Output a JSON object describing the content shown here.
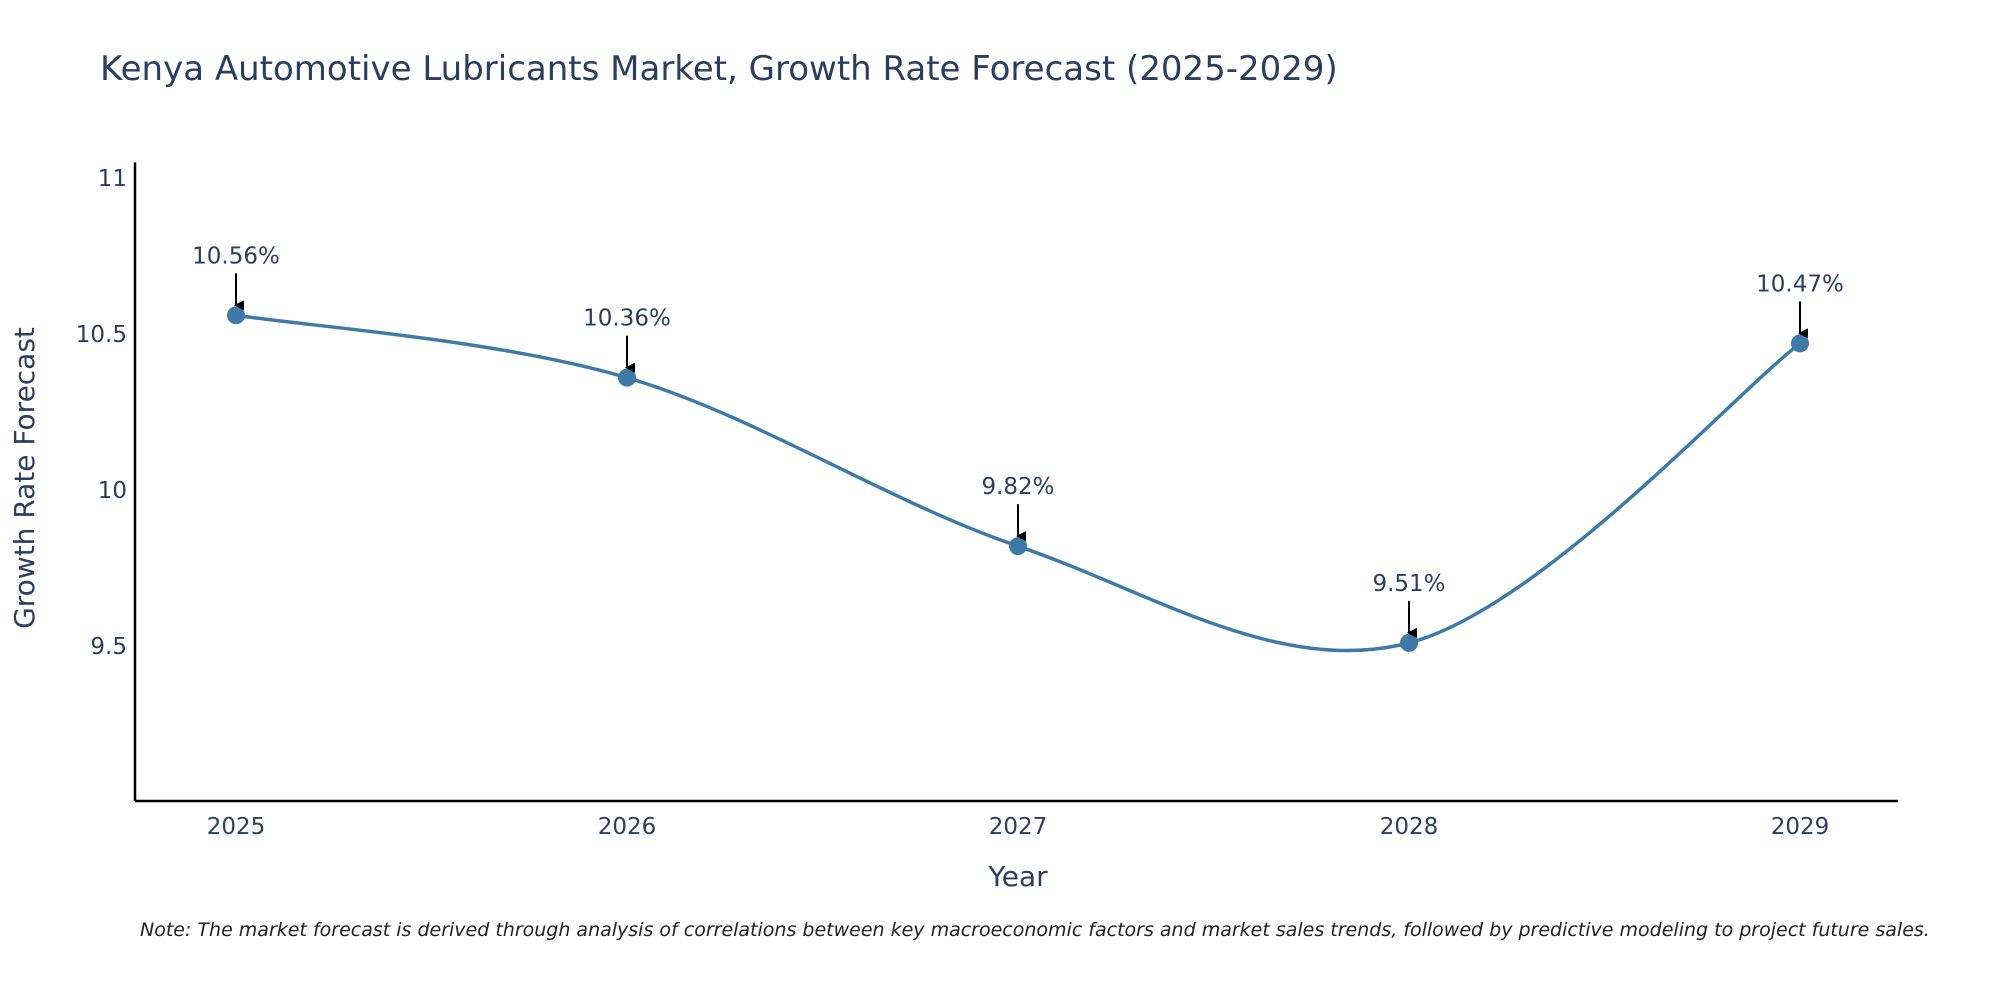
{
  "chart_data": {
    "type": "line",
    "title": "Kenya Automotive Lubricants Market, Growth Rate Forecast (2025-2029)",
    "xlabel": "Year",
    "ylabel": "Growth Rate Forecast",
    "categories": [
      "2025",
      "2026",
      "2027",
      "2028",
      "2029"
    ],
    "values": [
      10.56,
      10.36,
      9.82,
      9.51,
      10.47
    ],
    "data_labels": [
      "10.56%",
      "10.36%",
      "9.82%",
      "9.51%",
      "10.47%"
    ],
    "yticks": [
      "9.5",
      "10",
      "10.5",
      "11"
    ],
    "ylim": [
      9.0,
      11.05
    ],
    "grid": false,
    "line_color": "#3d7aa8",
    "marker_color": "#3d7aa8",
    "arrow_color": "#000000",
    "axis_color": "#000000"
  },
  "note": "Note: The market forecast is derived through analysis of correlations between key macroeconomic factors and market sales trends, followed by predictive modeling to project future sales."
}
